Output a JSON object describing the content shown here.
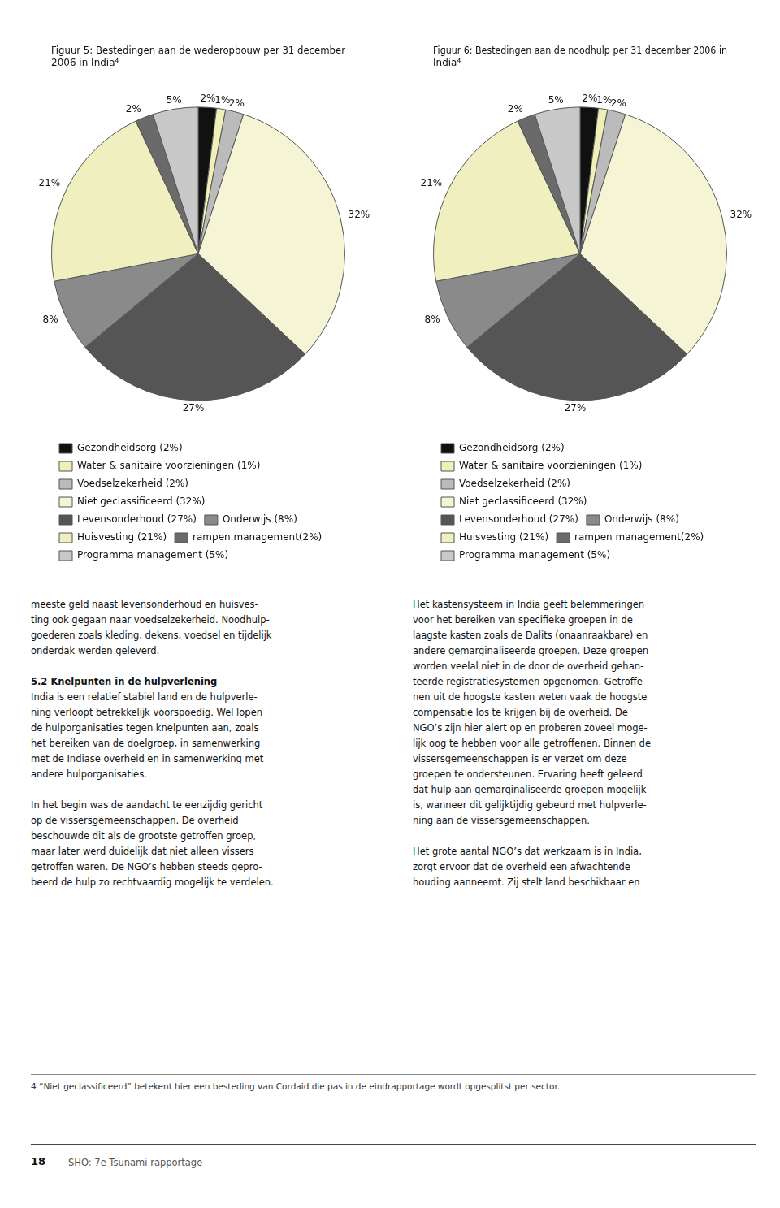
{
  "chart_data": [
    {
      "type": "pie",
      "title": [
        "Figuur 5: Bestedingen aan de wederopbouw per 31 december",
        "2006 in India⁴"
      ],
      "categories": [
        "Gezondheidsorg (2%)",
        "Water & sanitaire voorzieningen (1%)",
        "Voedselzekerheid (2%)",
        "Niet geclassificeerd (32%)",
        "Levensonderhoud (27%)",
        "Onderwijs (8%)",
        "Huisvesting (21%)",
        "rampen management(2%)",
        "Programma management (5%)"
      ],
      "values": [
        2,
        1,
        2,
        32,
        27,
        8,
        21,
        2,
        5
      ],
      "value_labels": [
        "2%",
        "1%",
        "2%",
        "32%",
        "27%",
        "8%",
        "21%",
        "2%",
        "5%"
      ],
      "colors": [
        "#111111",
        "#f0efb8",
        "#bbbbbb",
        "#f5f5d5",
        "#555555",
        "#8a8a8a",
        "#f0efc0",
        "#6a6a6a",
        "#c8c8c8"
      ],
      "data_labels": true,
      "legend": "bottom",
      "annotations": [
        [
          "meeste geld naast levensonderhoud en huisves-",
          "ting ook gegaan naar voedselzekerheid. Noodhulp-",
          "goederen zoals kleding, dekens, voedsel en tijdelijk",
          "onderdak werden geleverd."
        ],
        [
          "5.2 Knelpunten in de hulpverlening",
          "India is een relatief stabiel land en de hulpverle-",
          "ning verloopt betrekkelijk voorspoedig. Wel lopen",
          "de hulporganisaties tegen knelpunten aan, zoals",
          "het bereiken van de doelgroep, in samenwerking",
          "met de Indiase overheid en in samenwerking met",
          "andere hulporganisaties."
        ],
        [
          "In het begin was de aandacht te eenzijdig gericht",
          "op de vissersgemeenschappen. De overheid",
          "beschouwde dit als de grootste getroffen groep,",
          "maar later werd duidelijk dat niet alleen vissers",
          "getroffen waren. De NGO’s hebben steeds gepro-",
          "beerd de hulp zo rechtvaardig mogelijk te verdelen."
        ]
      ]
    },
    {
      "type": "pie",
      "title": [
        "Figuur 6: Bestedingen aan de noodhulp per 31 december 2006 in",
        "India⁴"
      ],
      "categories": [
        "Gezondheidsorg (2%)",
        "Water & sanitaire voorzieningen (1%)",
        "Voedselzekerheid (2%)",
        "Niet geclassificeerd (32%)",
        "Levensonderhoud (27%)",
        "Onderwijs (8%)",
        "Huisvesting (21%)",
        "rampen management(2%)",
        "Programma management (5%)"
      ],
      "values": [
        2,
        1,
        2,
        32,
        27,
        8,
        21,
        2,
        5
      ],
      "value_labels": [
        "2%",
        "1%",
        "2%",
        "32%",
        "27%",
        "8%",
        "21%",
        "2%",
        "5%"
      ],
      "colors": [
        "#111111",
        "#f0efb8",
        "#bbbbbb",
        "#f5f5d5",
        "#555555",
        "#8a8a8a",
        "#f0efc0",
        "#6a6a6a",
        "#c8c8c8"
      ],
      "data_labels": true,
      "legend": "bottom",
      "annotations": [
        [
          "Het kastensysteem in India geeft belemmeringen",
          "voor het bereiken van specifieke groepen in de",
          "laagste kasten zoals de Dalits (onaanraakbare) en",
          "andere gemarginaliseerde groepen. Deze groepen",
          "worden veelal niet in de door de overheid gehan-",
          "teerde registratiesystemen opgenomen. Getroffe-",
          "nen uit de hoogste kasten weten vaak de hoogste",
          "compensatie los te krijgen bij de overheid. De",
          "NGO’s zijn hier alert op en proberen zoveel moge-",
          "lijk oog te hebben voor alle getroffenen. Binnen de",
          "vissersgemeenschappen is er verzet om deze",
          "groepen te ondersteunen. Ervaring heeft geleerd",
          "dat hulp aan gemarginaliseerde groepen mogelijk",
          "is, wanneer dit gelijktijdig gebeurd met hulpverle-",
          "ning aan de vissersgemeenschappen."
        ],
        [
          "Het grote aantal NGO’s dat werkzaam is in India,",
          "zorgt ervoor dat de overheid een afwachtende",
          "houding aanneemt. Zij stelt land beschikbaar en"
        ]
      ]
    }
  ],
  "annotations": [
    "4  “Niet geclassificeerd” betekent hier een besteding van Cordaid die pas in de eindrapportage wordt opgesplitst per sector.",
    "18",
    "SHO: 7e Tsunami rapportage"
  ]
}
